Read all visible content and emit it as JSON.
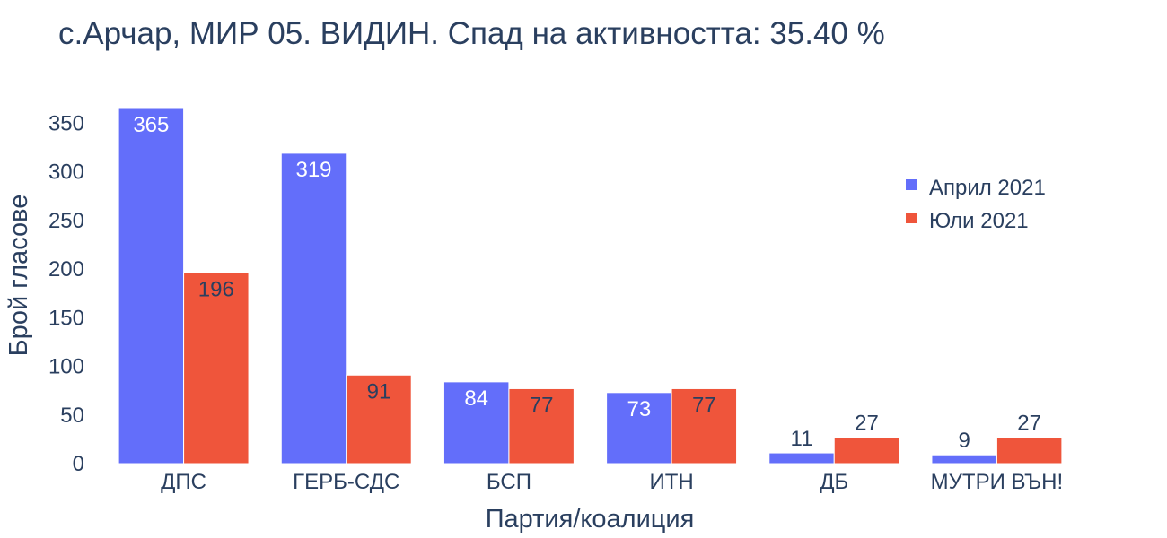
{
  "chart_data": {
    "type": "bar",
    "title": "с.Арчар, МИР 05. ВИДИН. Спад на активността: 35.40 %",
    "xlabel": "Партия/коалиция",
    "ylabel": "Брой гласове",
    "categories": [
      "ДПС",
      "ГЕРБ-СДС",
      "БСП",
      "ИТН",
      "ДБ",
      "МУТРИ ВЪН!"
    ],
    "series": [
      {
        "name": "Април 2021",
        "values": [
          365,
          319,
          84,
          73,
          11,
          9
        ],
        "color": "#636efa"
      },
      {
        "name": "Юли 2021",
        "values": [
          196,
          91,
          77,
          77,
          27,
          27
        ],
        "color": "#ef553b"
      }
    ],
    "ylim": [
      0,
      365
    ],
    "yticks": [
      0,
      50,
      100,
      150,
      200,
      250,
      300,
      350
    ],
    "grid": false,
    "legend": "top-right"
  }
}
